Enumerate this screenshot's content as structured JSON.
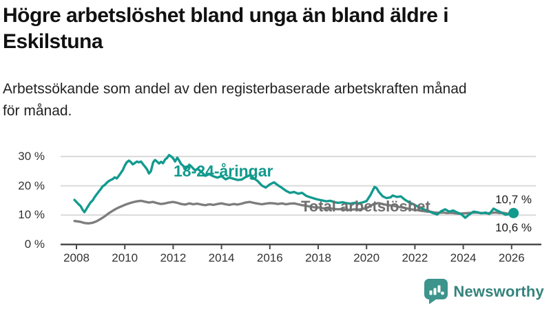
{
  "header": {
    "title": "Högre arbetslöshet bland unga än bland äldre i Eskilstuna",
    "subtitle": "Arbetssökande som andel av den registerbaserade arbetskraften månad för månad."
  },
  "chart_data": {
    "type": "line",
    "title": "Högre arbetslöshet bland unga än bland äldre i Eskilstuna",
    "xlabel": "",
    "ylabel": "",
    "grid": "horizontal-only",
    "x_axis": {
      "ticks": [
        2008,
        2010,
        2012,
        2014,
        2016,
        2018,
        2020,
        2022,
        2024,
        2026
      ],
      "tick_labels": [
        "2008",
        "2010",
        "2012",
        "2014",
        "2016",
        "2018",
        "2020",
        "2022",
        "2024",
        "2026"
      ],
      "range": [
        2007.9,
        2027.2
      ]
    },
    "y_axis": {
      "tick_values": [
        0,
        10,
        20,
        30
      ],
      "tick_labels": [
        "0 %",
        "10 %",
        "20 %",
        "30 %"
      ],
      "range": [
        0,
        33
      ]
    },
    "colors": {
      "young": "#129a8e",
      "total": "#7d7d7d",
      "gridline": "#d9d9d9",
      "axis": "#4a4a4a"
    },
    "series": [
      {
        "name": "Total arbetslöshet",
        "color": "#7d7d7d",
        "end_label": "10,6 %",
        "end_dot": false,
        "points": [
          [
            2007.92,
            8.0
          ],
          [
            2008.17,
            7.7
          ],
          [
            2008.33,
            7.3
          ],
          [
            2008.5,
            7.2
          ],
          [
            2008.67,
            7.4
          ],
          [
            2008.83,
            7.9
          ],
          [
            2009.0,
            8.7
          ],
          [
            2009.17,
            9.6
          ],
          [
            2009.33,
            10.6
          ],
          [
            2009.5,
            11.5
          ],
          [
            2009.67,
            12.3
          ],
          [
            2009.83,
            12.9
          ],
          [
            2010.0,
            13.5
          ],
          [
            2010.17,
            14.0
          ],
          [
            2010.33,
            14.4
          ],
          [
            2010.5,
            14.7
          ],
          [
            2010.67,
            14.9
          ],
          [
            2010.83,
            14.6
          ],
          [
            2011.0,
            14.3
          ],
          [
            2011.17,
            14.5
          ],
          [
            2011.33,
            14.1
          ],
          [
            2011.5,
            13.8
          ],
          [
            2011.67,
            14.0
          ],
          [
            2011.83,
            14.3
          ],
          [
            2012.0,
            14.5
          ],
          [
            2012.17,
            14.2
          ],
          [
            2012.33,
            13.8
          ],
          [
            2012.5,
            13.6
          ],
          [
            2012.67,
            14.0
          ],
          [
            2012.83,
            13.7
          ],
          [
            2013.0,
            13.9
          ],
          [
            2013.17,
            13.6
          ],
          [
            2013.33,
            13.4
          ],
          [
            2013.5,
            13.7
          ],
          [
            2013.67,
            13.5
          ],
          [
            2013.83,
            13.8
          ],
          [
            2014.0,
            14.0
          ],
          [
            2014.17,
            13.7
          ],
          [
            2014.33,
            13.5
          ],
          [
            2014.5,
            13.8
          ],
          [
            2014.67,
            13.6
          ],
          [
            2014.83,
            13.9
          ],
          [
            2015.0,
            14.3
          ],
          [
            2015.17,
            14.5
          ],
          [
            2015.33,
            14.2
          ],
          [
            2015.5,
            13.9
          ],
          [
            2015.67,
            13.7
          ],
          [
            2015.83,
            13.9
          ],
          [
            2016.0,
            14.1
          ],
          [
            2016.17,
            14.0
          ],
          [
            2016.33,
            13.8
          ],
          [
            2016.5,
            14.0
          ],
          [
            2016.67,
            13.7
          ],
          [
            2016.83,
            13.9
          ],
          [
            2017.0,
            14.0
          ],
          [
            2017.17,
            13.7
          ],
          [
            2017.33,
            13.4
          ],
          [
            2017.5,
            13.2
          ],
          [
            2017.67,
            12.9
          ],
          [
            2017.83,
            12.7
          ],
          [
            2018.0,
            12.6
          ],
          [
            2018.17,
            12.4
          ],
          [
            2018.33,
            12.2
          ],
          [
            2018.5,
            12.3
          ],
          [
            2018.67,
            12.1
          ],
          [
            2018.83,
            12.0
          ],
          [
            2019.0,
            12.1
          ],
          [
            2019.17,
            11.9
          ],
          [
            2019.33,
            11.8
          ],
          [
            2019.5,
            12.0
          ],
          [
            2019.67,
            11.9
          ],
          [
            2019.83,
            12.1
          ],
          [
            2020.0,
            12.4
          ],
          [
            2020.17,
            13.2
          ],
          [
            2020.33,
            13.9
          ],
          [
            2020.5,
            14.1
          ],
          [
            2020.67,
            13.8
          ],
          [
            2020.83,
            13.5
          ],
          [
            2021.0,
            13.3
          ],
          [
            2021.17,
            13.1
          ],
          [
            2021.33,
            12.8
          ],
          [
            2021.5,
            12.6
          ],
          [
            2021.67,
            12.3
          ],
          [
            2021.83,
            12.0
          ],
          [
            2022.0,
            11.8
          ],
          [
            2022.17,
            11.6
          ],
          [
            2022.33,
            11.4
          ],
          [
            2022.5,
            11.2
          ],
          [
            2022.67,
            11.1
          ],
          [
            2022.83,
            10.9
          ],
          [
            2023.0,
            10.8
          ],
          [
            2023.17,
            10.9
          ],
          [
            2023.33,
            10.7
          ],
          [
            2023.5,
            10.8
          ],
          [
            2023.67,
            10.6
          ],
          [
            2023.83,
            10.5
          ],
          [
            2024.0,
            10.6
          ],
          [
            2024.17,
            10.7
          ],
          [
            2024.33,
            10.8
          ],
          [
            2024.5,
            10.9
          ],
          [
            2024.67,
            10.8
          ],
          [
            2024.83,
            10.7
          ],
          [
            2025.0,
            10.6
          ],
          [
            2025.17,
            10.8
          ],
          [
            2025.33,
            10.9
          ],
          [
            2025.5,
            10.7
          ],
          [
            2025.67,
            10.8
          ],
          [
            2025.83,
            10.5
          ],
          [
            2026.08,
            10.6
          ]
        ]
      },
      {
        "name": "18-24-åringar",
        "color": "#129a8e",
        "end_label": "10,7 %",
        "end_dot": true,
        "points": [
          [
            2007.92,
            15.2
          ],
          [
            2008.08,
            13.8
          ],
          [
            2008.17,
            13.1
          ],
          [
            2008.25,
            11.9
          ],
          [
            2008.33,
            11.0
          ],
          [
            2008.42,
            12.2
          ],
          [
            2008.5,
            13.3
          ],
          [
            2008.58,
            14.3
          ],
          [
            2008.67,
            15.0
          ],
          [
            2008.75,
            16.1
          ],
          [
            2008.83,
            17.0
          ],
          [
            2008.92,
            18.0
          ],
          [
            2009.0,
            18.8
          ],
          [
            2009.08,
            19.8
          ],
          [
            2009.17,
            20.3
          ],
          [
            2009.25,
            21.0
          ],
          [
            2009.33,
            21.6
          ],
          [
            2009.42,
            22.0
          ],
          [
            2009.5,
            22.3
          ],
          [
            2009.58,
            22.9
          ],
          [
            2009.67,
            22.5
          ],
          [
            2009.75,
            23.4
          ],
          [
            2009.83,
            24.3
          ],
          [
            2009.92,
            25.4
          ],
          [
            2010.0,
            26.9
          ],
          [
            2010.08,
            28.0
          ],
          [
            2010.17,
            28.6
          ],
          [
            2010.25,
            28.1
          ],
          [
            2010.33,
            27.3
          ],
          [
            2010.42,
            27.8
          ],
          [
            2010.5,
            28.3
          ],
          [
            2010.58,
            28.0
          ],
          [
            2010.67,
            28.3
          ],
          [
            2010.75,
            27.4
          ],
          [
            2010.83,
            26.6
          ],
          [
            2010.92,
            25.6
          ],
          [
            2011.0,
            24.2
          ],
          [
            2011.08,
            25.0
          ],
          [
            2011.17,
            28.0
          ],
          [
            2011.25,
            28.8
          ],
          [
            2011.33,
            28.3
          ],
          [
            2011.42,
            27.6
          ],
          [
            2011.5,
            28.2
          ],
          [
            2011.58,
            27.7
          ],
          [
            2011.67,
            29.0
          ],
          [
            2011.75,
            29.5
          ],
          [
            2011.83,
            30.5
          ],
          [
            2011.92,
            30.0
          ],
          [
            2012.0,
            29.4
          ],
          [
            2012.08,
            28.3
          ],
          [
            2012.17,
            29.6
          ],
          [
            2012.25,
            28.6
          ],
          [
            2012.33,
            27.4
          ],
          [
            2012.42,
            26.8
          ],
          [
            2012.5,
            25.6
          ],
          [
            2012.58,
            26.3
          ],
          [
            2012.67,
            27.2
          ],
          [
            2012.75,
            26.6
          ],
          [
            2012.83,
            25.9
          ],
          [
            2012.92,
            25.2
          ],
          [
            2013.0,
            25.8
          ],
          [
            2013.17,
            24.8
          ],
          [
            2013.33,
            23.4
          ],
          [
            2013.5,
            24.0
          ],
          [
            2013.67,
            23.2
          ],
          [
            2013.83,
            22.8
          ],
          [
            2014.0,
            23.3
          ],
          [
            2014.17,
            22.2
          ],
          [
            2014.33,
            22.8
          ],
          [
            2014.5,
            22.4
          ],
          [
            2014.67,
            22.0
          ],
          [
            2014.83,
            22.1
          ],
          [
            2015.0,
            23.0
          ],
          [
            2015.17,
            23.6
          ],
          [
            2015.33,
            22.6
          ],
          [
            2015.5,
            21.6
          ],
          [
            2015.67,
            20.1
          ],
          [
            2015.83,
            19.4
          ],
          [
            2016.0,
            20.5
          ],
          [
            2016.17,
            21.2
          ],
          [
            2016.33,
            20.2
          ],
          [
            2016.5,
            19.3
          ],
          [
            2016.67,
            18.3
          ],
          [
            2016.83,
            17.6
          ],
          [
            2017.0,
            17.9
          ],
          [
            2017.17,
            17.3
          ],
          [
            2017.33,
            17.6
          ],
          [
            2017.5,
            16.6
          ],
          [
            2017.67,
            16.1
          ],
          [
            2017.83,
            15.7
          ],
          [
            2018.0,
            15.3
          ],
          [
            2018.17,
            15.0
          ],
          [
            2018.33,
            14.7
          ],
          [
            2018.5,
            14.9
          ],
          [
            2018.67,
            14.4
          ],
          [
            2018.83,
            14.2
          ],
          [
            2019.0,
            14.4
          ],
          [
            2019.17,
            14.1
          ],
          [
            2019.33,
            13.9
          ],
          [
            2019.5,
            14.2
          ],
          [
            2019.67,
            14.0
          ],
          [
            2019.83,
            14.3
          ],
          [
            2020.0,
            14.8
          ],
          [
            2020.17,
            17.0
          ],
          [
            2020.33,
            19.6
          ],
          [
            2020.42,
            19.2
          ],
          [
            2020.5,
            18.0
          ],
          [
            2020.67,
            16.4
          ],
          [
            2020.83,
            15.8
          ],
          [
            2021.0,
            16.1
          ],
          [
            2021.08,
            16.7
          ],
          [
            2021.25,
            16.2
          ],
          [
            2021.42,
            16.4
          ],
          [
            2021.58,
            15.3
          ],
          [
            2021.75,
            14.4
          ],
          [
            2021.92,
            13.8
          ],
          [
            2022.08,
            13.1
          ],
          [
            2022.25,
            12.4
          ],
          [
            2022.42,
            11.8
          ],
          [
            2022.58,
            11.3
          ],
          [
            2022.75,
            10.7
          ],
          [
            2022.92,
            10.2
          ],
          [
            2023.08,
            11.3
          ],
          [
            2023.25,
            12.0
          ],
          [
            2023.42,
            11.2
          ],
          [
            2023.58,
            11.6
          ],
          [
            2023.75,
            10.9
          ],
          [
            2023.92,
            10.3
          ],
          [
            2024.08,
            9.1
          ],
          [
            2024.25,
            10.2
          ],
          [
            2024.42,
            11.2
          ],
          [
            2024.58,
            11.0
          ],
          [
            2024.75,
            10.6
          ],
          [
            2024.92,
            10.9
          ],
          [
            2025.08,
            10.4
          ],
          [
            2025.25,
            12.2
          ],
          [
            2025.42,
            11.5
          ],
          [
            2025.58,
            10.9
          ],
          [
            2025.75,
            10.1
          ],
          [
            2025.92,
            10.4
          ],
          [
            2026.08,
            10.7
          ]
        ]
      }
    ],
    "annotations": {
      "series_label_young": "18-24-åringar",
      "series_label_total": "Total arbetslöshet",
      "end_label_top": "10,7 %",
      "end_label_bottom": "10,6 %"
    }
  },
  "footer": {
    "brand": "Newsworthy",
    "logo_icon": "bar-chart-bubble-icon",
    "brand_color": "#3c948c"
  }
}
